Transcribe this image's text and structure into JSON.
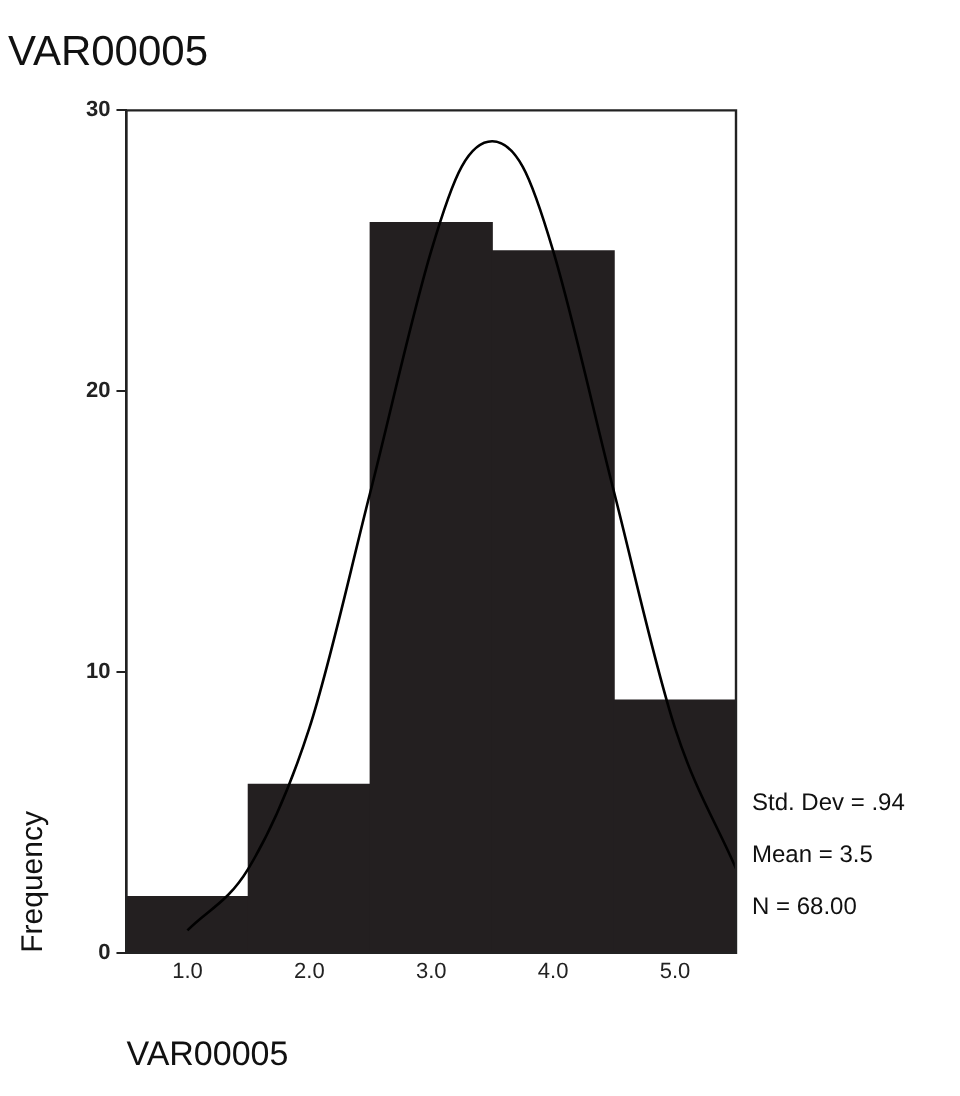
{
  "chart_data": {
    "type": "histogram",
    "title": "VAR00005",
    "xlabel": "VAR00005",
    "ylabel": "Frequency",
    "series": [
      {
        "color": "#231f20",
        "bins": [
          0.5,
          1.5,
          2.5,
          3.5,
          4.5,
          5.5
        ],
        "values": [
          2,
          6,
          26,
          25,
          9
        ]
      },
      {
        "type": "line",
        "color": "#000000",
        "x": [
          1.0,
          1.5,
          2.0,
          2.5,
          3.0,
          3.25,
          3.5,
          3.75,
          4.0,
          4.5,
          5.0,
          5.5
        ],
        "values": [
          0.8,
          3,
          8,
          16.4,
          25,
          28,
          28.9,
          28,
          25,
          16.4,
          8,
          3
        ]
      }
    ],
    "xlim": [
      0.5,
      5.5
    ],
    "xticks": [
      {
        "value": 1,
        "label": "1.0"
      },
      {
        "value": 2,
        "label": "2.0"
      },
      {
        "value": 3,
        "label": "3.0"
      },
      {
        "value": 4,
        "label": "4.0"
      },
      {
        "value": 5,
        "label": "5.0"
      }
    ],
    "ylim": [
      0,
      30
    ],
    "yticks": [
      0,
      10,
      20,
      30
    ],
    "grid": false,
    "legend": false,
    "marker": "none",
    "line_style": "solid",
    "annotations": [
      "Std. Dev = .94",
      "Mean = 3.5",
      "N = 68.00"
    ]
  }
}
